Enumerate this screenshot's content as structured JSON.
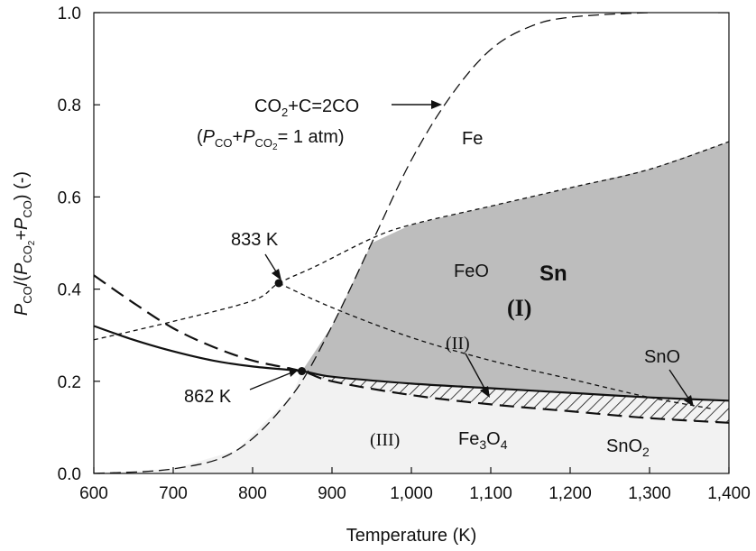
{
  "chart_data": {
    "type": "line",
    "xlabel": "Temperature (K)",
    "ylabel": "PCO/(PCO2+PCO) (-)",
    "xlim": [
      600,
      1400
    ],
    "ylim": [
      0.0,
      1.0
    ],
    "x_ticks": [
      600,
      700,
      800,
      900,
      1000,
      1100,
      1200,
      1300,
      1400
    ],
    "x_tick_labels": [
      "600",
      "700",
      "800",
      "900",
      "1,000",
      "1,100",
      "1,200",
      "1,300",
      "1,400"
    ],
    "y_ticks": [
      0.0,
      0.2,
      0.4,
      0.6,
      0.8,
      1.0
    ],
    "y_tick_labels": [
      "0.0",
      "0.2",
      "0.4",
      "0.6",
      "0.8",
      "1.0"
    ],
    "grid": false,
    "legend": "none",
    "series": [
      {
        "style": "short-dash",
        "points": [
          [
            600,
            0.29
          ],
          [
            700,
            0.33
          ],
          [
            800,
            0.375
          ],
          [
            833,
            0.413
          ],
          [
            880,
            0.45
          ],
          [
            950,
            0.51
          ],
          [
            1000,
            0.54
          ],
          [
            1100,
            0.58
          ],
          [
            1200,
            0.62
          ],
          [
            1300,
            0.66
          ],
          [
            1400,
            0.72
          ]
        ]
      },
      {
        "style": "short-dash",
        "points": [
          [
            833,
            0.413
          ],
          [
            900,
            0.36
          ],
          [
            1000,
            0.295
          ],
          [
            1100,
            0.245
          ],
          [
            1200,
            0.205
          ],
          [
            1300,
            0.165
          ],
          [
            1380,
            0.14
          ]
        ]
      },
      {
        "style": "long-dash",
        "points": [
          [
            600,
            0.0
          ],
          [
            700,
            0.01
          ],
          [
            780,
            0.05
          ],
          [
            850,
            0.17
          ],
          [
            900,
            0.32
          ],
          [
            950,
            0.5
          ],
          [
            1000,
            0.68
          ],
          [
            1050,
            0.82
          ],
          [
            1100,
            0.92
          ],
          [
            1150,
            0.97
          ],
          [
            1200,
            0.99
          ],
          [
            1300,
            1.0
          ],
          [
            1400,
            1.0
          ]
        ]
      },
      {
        "style": "heavy-long-dash",
        "points": [
          [
            600,
            0.43
          ],
          [
            650,
            0.37
          ],
          [
            700,
            0.315
          ],
          [
            750,
            0.275
          ],
          [
            800,
            0.245
          ],
          [
            862,
            0.222
          ],
          [
            900,
            0.2
          ],
          [
            1000,
            0.17
          ],
          [
            1100,
            0.15
          ],
          [
            1200,
            0.135
          ],
          [
            1300,
            0.12
          ],
          [
            1400,
            0.11
          ]
        ]
      },
      {
        "style": "solid",
        "points": [
          [
            600,
            0.32
          ],
          [
            650,
            0.29
          ],
          [
            700,
            0.265
          ],
          [
            750,
            0.245
          ],
          [
            800,
            0.232
          ],
          [
            862,
            0.222
          ],
          [
            900,
            0.21
          ],
          [
            1000,
            0.195
          ],
          [
            1100,
            0.185
          ],
          [
            1200,
            0.175
          ],
          [
            1300,
            0.165
          ],
          [
            1400,
            0.158
          ]
        ]
      }
    ],
    "points": [
      {
        "x": 833,
        "y": 0.413,
        "label": "833 K"
      },
      {
        "x": 862,
        "y": 0.222,
        "label": "862 K"
      }
    ],
    "regions": {
      "gray_fill": "#bdbdbd",
      "light_fill": "#f2f2f2",
      "hatch_color": "#111111"
    },
    "annotations": {
      "equation_line1": "CO2+C=2CO",
      "equation_line2": "(PCO+PCO2= 1 atm)",
      "fe": "Fe",
      "feo": "FeO",
      "sn": "Sn",
      "region_i": "(I)",
      "region_ii": "(II)",
      "region_iii": "(III)",
      "sno": "SnO",
      "fe3o4": "Fe3O4",
      "sno2": "SnO2"
    }
  }
}
